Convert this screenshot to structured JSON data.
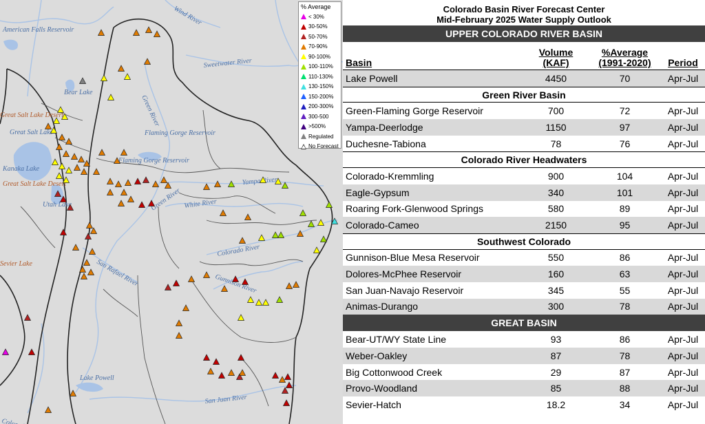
{
  "legend": {
    "title": "% Average",
    "items": [
      {
        "label": "< 30%",
        "color": "#e600e6"
      },
      {
        "label": "30-50%",
        "color": "#c00000"
      },
      {
        "label": "50-70%",
        "color": "#b22222"
      },
      {
        "label": "70-90%",
        "color": "#e07b00"
      },
      {
        "label": "90-100%",
        "color": "#ffff00"
      },
      {
        "label": "100-110%",
        "color": "#a0e000"
      },
      {
        "label": "110-130%",
        "color": "#00e070"
      },
      {
        "label": "130-150%",
        "color": "#40e0e0"
      },
      {
        "label": "150-200%",
        "color": "#2060ff"
      },
      {
        "label": "200-300%",
        "color": "#2020c0"
      },
      {
        "label": "300-500",
        "color": "#6020c0"
      },
      {
        "label": ">500%",
        "color": "#400080"
      },
      {
        "label": "Regulated",
        "color": "#808080"
      },
      {
        "label": "No Forecast",
        "color": "#ffffff"
      }
    ]
  },
  "map_labels": {
    "american_falls": "American Falls Reservoir",
    "wind_river": "Wind River",
    "sweetwater_river": "Sweetwater River",
    "bear_lake": "Bear Lake",
    "green_river": "Green River",
    "flaming_gorge": "Flaming Gorge Reservoir",
    "flaming_gorge_2": "Flaming Gorge Reservoir",
    "great_salt_lake": "Great Salt Lake",
    "great_salt_lake_desert": "Great Salt Lake Desert",
    "kanaka_lake": "Kanaka Lake",
    "utah_lake": "Utah Lake",
    "yampa_river": "Yampa River",
    "white_river": "White River",
    "green_river_2": "Green River",
    "colorado_river": "Colorado River",
    "gunnison_river": "Gunnison River",
    "san_rafael": "San Rafael River",
    "sevier_lake": "Sevier Lake",
    "lake_powell": "Lake Powell",
    "san_juan_river": "San Juan River",
    "colorado_bottom": "Colorado"
  },
  "table": {
    "title_line1": "Colorado Basin River Forecast Center",
    "title_line2": "Mid-February 2025 Water Supply Outlook",
    "upper_band": "UPPER COLORADO RIVER BASIN",
    "col_basin": "Basin",
    "col_volume_1": "Volume",
    "col_volume_2": "(KAF)",
    "col_avg_1": "%Average",
    "col_avg_2": "(1991-2020)",
    "col_period": "Period",
    "lake_powell": {
      "basin": "Lake Powell",
      "volume": "4450",
      "avg": "70",
      "period": "Apr-Jul"
    },
    "green_title": "Green River Basin",
    "green": [
      {
        "basin": "Green-Flaming Gorge Reservoir",
        "volume": "700",
        "avg": "72",
        "period": "Apr-Jul"
      },
      {
        "basin": "Yampa-Deerlodge",
        "volume": "1150",
        "avg": "97",
        "period": "Apr-Jul"
      },
      {
        "basin": "Duchesne-Tabiona",
        "volume": "78",
        "avg": "76",
        "period": "Apr-Jul"
      }
    ],
    "headwaters_title": "Colorado River Headwaters",
    "headwaters": [
      {
        "basin": "Colorado-Kremmling",
        "volume": "900",
        "avg": "104",
        "period": "Apr-Jul"
      },
      {
        "basin": "Eagle-Gypsum",
        "volume": "340",
        "avg": "101",
        "period": "Apr-Jul"
      },
      {
        "basin": "Roaring Fork-Glenwood Springs",
        "volume": "580",
        "avg": "89",
        "period": "Apr-Jul"
      },
      {
        "basin": "Colorado-Cameo",
        "volume": "2150",
        "avg": "95",
        "period": "Apr-Jul"
      }
    ],
    "southwest_title": "Southwest Colorado",
    "southwest": [
      {
        "basin": "Gunnison-Blue Mesa Reservoir",
        "volume": "550",
        "avg": "86",
        "period": "Apr-Jul"
      },
      {
        "basin": "Dolores-McPhee Reservoir",
        "volume": "160",
        "avg": "63",
        "period": "Apr-Jul"
      },
      {
        "basin": "San Juan-Navajo Reservoir",
        "volume": "345",
        "avg": "55",
        "period": "Apr-Jul"
      },
      {
        "basin": "Animas-Durango",
        "volume": "300",
        "avg": "78",
        "period": "Apr-Jul"
      }
    ],
    "great_band": "GREAT BASIN",
    "great": [
      {
        "basin": "Bear-UT/WY State Line",
        "volume": "93",
        "avg": "86",
        "period": "Apr-Jul"
      },
      {
        "basin": "Weber-Oakley",
        "volume": "87",
        "avg": "78",
        "period": "Apr-Jul"
      },
      {
        "basin": "Big Cottonwood Creek",
        "volume": "29",
        "avg": "87",
        "period": "Apr-Jul"
      },
      {
        "basin": "Provo-Woodland",
        "volume": "85",
        "avg": "88",
        "period": "Apr-Jul"
      },
      {
        "basin": "Sevier-Hatch",
        "volume": "18.2",
        "avg": "34",
        "period": "Apr-Jul"
      }
    ]
  }
}
